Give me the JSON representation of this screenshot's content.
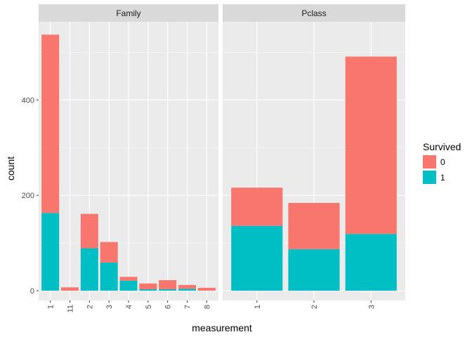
{
  "chart_data": {
    "type": "bar",
    "stacked": true,
    "xlabel": "measurement",
    "ylabel": "count",
    "ylim": [
      0,
      550
    ],
    "y_ticks": [
      0,
      200,
      400
    ],
    "colors": {
      "0": "#F8766D",
      "1": "#00BFC4"
    },
    "legend": {
      "title": "Survived",
      "placement": "right",
      "entries": [
        "0",
        "1"
      ]
    },
    "panels": [
      {
        "title": "Family",
        "categories": [
          "1",
          "11",
          "2",
          "3",
          "4",
          "5",
          "6",
          "7",
          "8"
        ],
        "series": [
          {
            "name": "1",
            "values": [
              163,
              0,
              89,
              59,
              21,
              3,
              3,
              4,
              0
            ]
          },
          {
            "name": "0",
            "values": [
              374,
              7,
              72,
              43,
              8,
              12,
              19,
              8,
              6
            ]
          }
        ]
      },
      {
        "title": "Pclass",
        "categories": [
          "1",
          "2",
          "3"
        ],
        "series": [
          {
            "name": "1",
            "values": [
              136,
              87,
              119
            ]
          },
          {
            "name": "0",
            "values": [
              80,
              97,
              372
            ]
          }
        ]
      }
    ]
  }
}
